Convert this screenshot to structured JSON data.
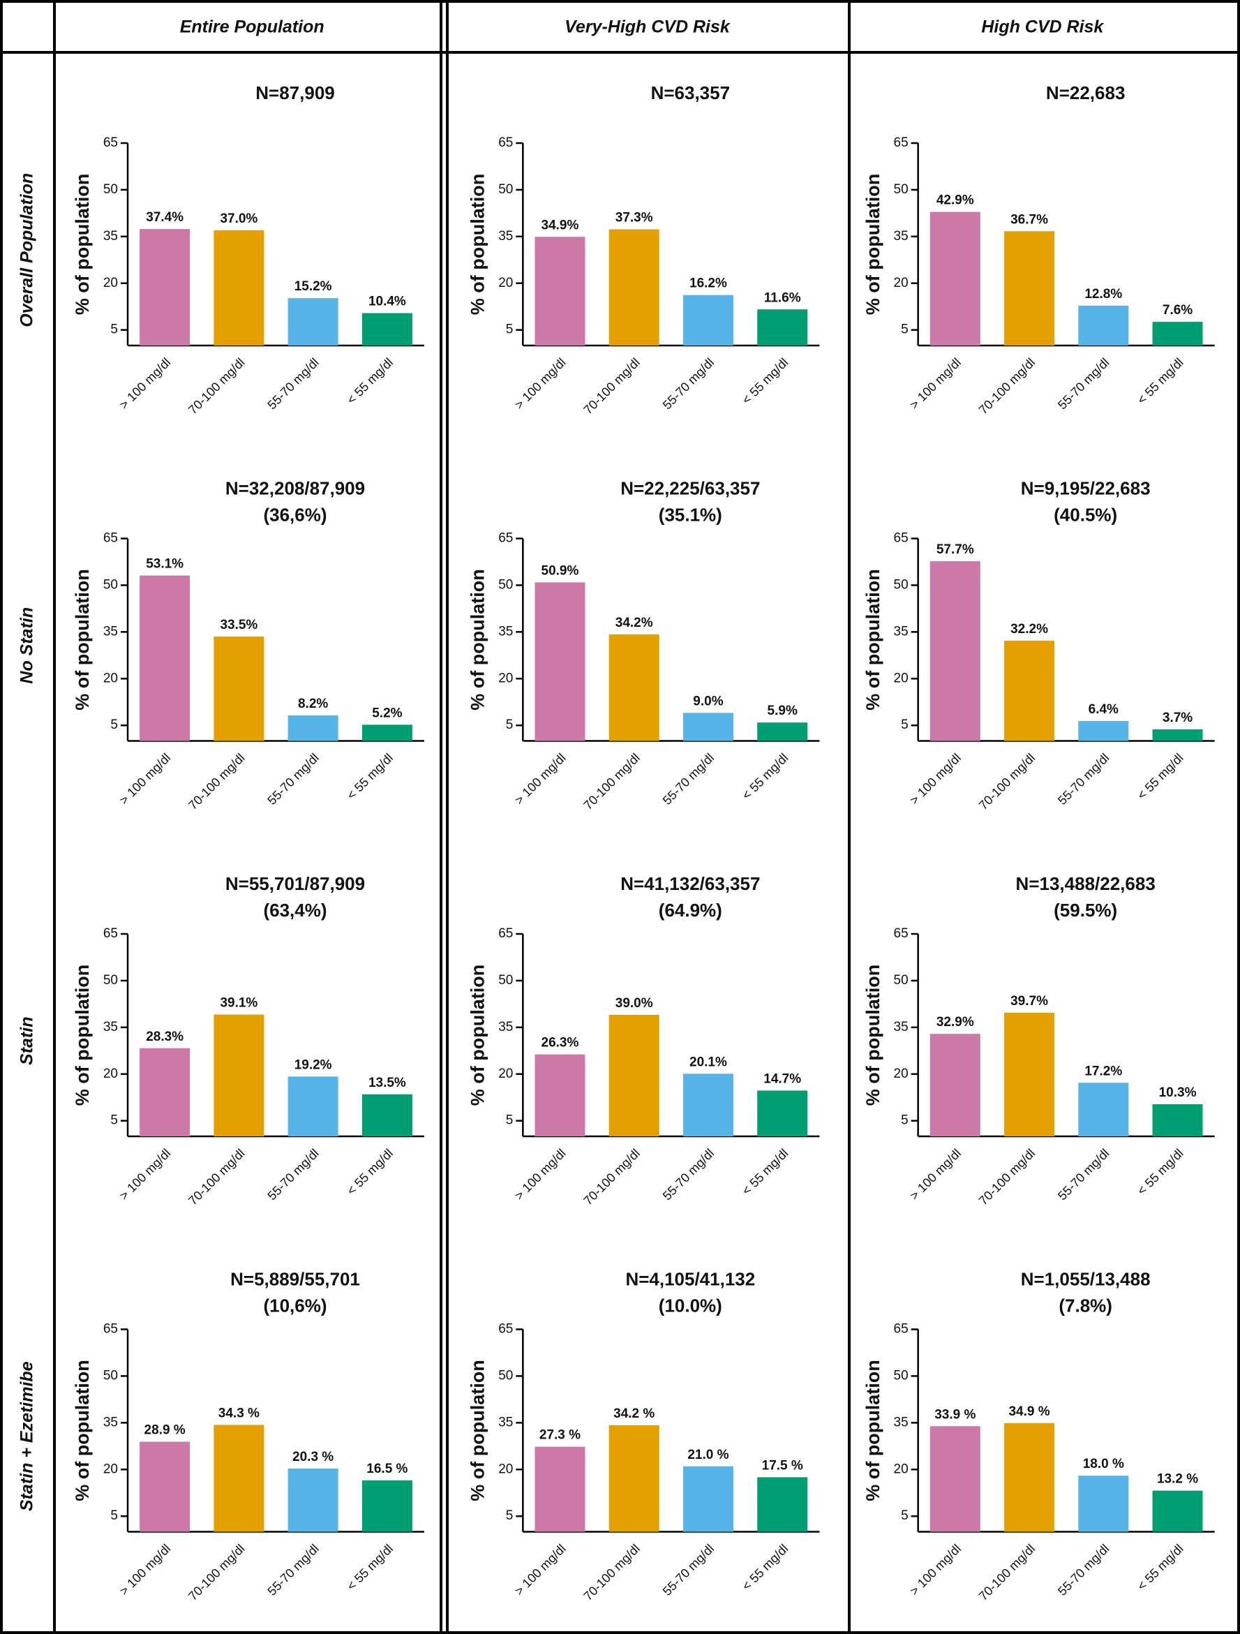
{
  "columns": [
    "Entire Population",
    "Very-High CVD Risk",
    "High CVD Risk"
  ],
  "rows": [
    "Overall Population",
    "No Statin",
    "Statin",
    "Statin + Ezetimibe"
  ],
  "chart_data": [
    {
      "type": "bar",
      "title": "N=87,909",
      "ylabel": "% of population",
      "categories": [
        "> 100 mg/dl",
        "70-100 mg/dl",
        "55-70 mg/dl",
        "< 55 mg/dl"
      ],
      "values": [
        37.4,
        37.0,
        15.2,
        10.4
      ],
      "value_labels": [
        "37.4%",
        "37.0%",
        "15.2%",
        "10.4%"
      ],
      "colors": [
        "#cc79a7",
        "#e69f00",
        "#56b4e9",
        "#009e73"
      ],
      "ylim": [
        0,
        65
      ],
      "yticks": [
        5,
        20,
        35,
        50,
        65
      ]
    },
    {
      "type": "bar",
      "title": "N=63,357",
      "ylabel": "% of population",
      "categories": [
        "> 100 mg/dl",
        "70-100 mg/dl",
        "55-70 mg/dl",
        "< 55 mg/dl"
      ],
      "values": [
        34.9,
        37.3,
        16.2,
        11.6
      ],
      "value_labels": [
        "34.9%",
        "37.3%",
        "16.2%",
        "11.6%"
      ],
      "colors": [
        "#cc79a7",
        "#e69f00",
        "#56b4e9",
        "#009e73"
      ],
      "ylim": [
        0,
        65
      ],
      "yticks": [
        5,
        20,
        35,
        50,
        65
      ]
    },
    {
      "type": "bar",
      "title": "N=22,683",
      "ylabel": "% of population",
      "categories": [
        "> 100 mg/dl",
        "70-100 mg/dl",
        "55-70 mg/dl",
        "< 55 mg/dl"
      ],
      "values": [
        42.9,
        36.7,
        12.8,
        7.6
      ],
      "value_labels": [
        "42.9%",
        "36.7%",
        "12.8%",
        "7.6%"
      ],
      "colors": [
        "#cc79a7",
        "#e69f00",
        "#56b4e9",
        "#009e73"
      ],
      "ylim": [
        0,
        65
      ],
      "yticks": [
        5,
        20,
        35,
        50,
        65
      ]
    },
    {
      "type": "bar",
      "title": "N=32,208/87,909",
      "subtitle": "(36,6%)",
      "ylabel": "% of population",
      "categories": [
        "> 100 mg/dl",
        "70-100 mg/dl",
        "55-70 mg/dl",
        "< 55 mg/dl"
      ],
      "values": [
        53.1,
        33.5,
        8.2,
        5.2
      ],
      "value_labels": [
        "53.1%",
        "33.5%",
        "8.2%",
        "5.2%"
      ],
      "colors": [
        "#cc79a7",
        "#e69f00",
        "#56b4e9",
        "#009e73"
      ],
      "ylim": [
        0,
        65
      ],
      "yticks": [
        5,
        20,
        35,
        50,
        65
      ]
    },
    {
      "type": "bar",
      "title": "N=22,225/63,357",
      "subtitle": "(35.1%)",
      "ylabel": "% of population",
      "categories": [
        "> 100 mg/dl",
        "70-100 mg/dl",
        "55-70 mg/dl",
        "< 55 mg/dl"
      ],
      "values": [
        50.9,
        34.2,
        9.0,
        5.9
      ],
      "value_labels": [
        "50.9%",
        "34.2%",
        "9.0%",
        "5.9%"
      ],
      "colors": [
        "#cc79a7",
        "#e69f00",
        "#56b4e9",
        "#009e73"
      ],
      "ylim": [
        0,
        65
      ],
      "yticks": [
        5,
        20,
        35,
        50,
        65
      ]
    },
    {
      "type": "bar",
      "title": "N=9,195/22,683",
      "subtitle": "(40.5%)",
      "ylabel": "% of population",
      "categories": [
        "> 100 mg/dl",
        "70-100 mg/dl",
        "55-70 mg/dl",
        "< 55 mg/dl"
      ],
      "values": [
        57.7,
        32.2,
        6.4,
        3.7
      ],
      "value_labels": [
        "57.7%",
        "32.2%",
        "6.4%",
        "3.7%"
      ],
      "colors": [
        "#cc79a7",
        "#e69f00",
        "#56b4e9",
        "#009e73"
      ],
      "ylim": [
        0,
        65
      ],
      "yticks": [
        5,
        20,
        35,
        50,
        65
      ]
    },
    {
      "type": "bar",
      "title": "N=55,701/87,909",
      "subtitle": "(63,4%)",
      "ylabel": "% of population",
      "categories": [
        "> 100 mg/dl",
        "70-100 mg/dl",
        "55-70 mg/dl",
        "< 55 mg/dl"
      ],
      "values": [
        28.3,
        39.1,
        19.2,
        13.5
      ],
      "value_labels": [
        "28.3%",
        "39.1%",
        "19.2%",
        "13.5%"
      ],
      "colors": [
        "#cc79a7",
        "#e69f00",
        "#56b4e9",
        "#009e73"
      ],
      "ylim": [
        0,
        65
      ],
      "yticks": [
        5,
        20,
        35,
        50,
        65
      ]
    },
    {
      "type": "bar",
      "title": "N=41,132/63,357",
      "subtitle": "(64.9%)",
      "ylabel": "% of population",
      "categories": [
        "> 100 mg/dl",
        "70-100 mg/dl",
        "55-70 mg/dl",
        "< 55 mg/dl"
      ],
      "values": [
        26.3,
        39.0,
        20.1,
        14.7
      ],
      "value_labels": [
        "26.3%",
        "39.0%",
        "20.1%",
        "14.7%"
      ],
      "colors": [
        "#cc79a7",
        "#e69f00",
        "#56b4e9",
        "#009e73"
      ],
      "ylim": [
        0,
        65
      ],
      "yticks": [
        5,
        20,
        35,
        50,
        65
      ]
    },
    {
      "type": "bar",
      "title": "N=13,488/22,683",
      "subtitle": "(59.5%)",
      "ylabel": "% of population",
      "categories": [
        "> 100 mg/dl",
        "70-100 mg/dl",
        "55-70 mg/dl",
        "< 55 mg/dl"
      ],
      "values": [
        32.9,
        39.7,
        17.2,
        10.3
      ],
      "value_labels": [
        "32.9%",
        "39.7%",
        "17.2%",
        "10.3%"
      ],
      "colors": [
        "#cc79a7",
        "#e69f00",
        "#56b4e9",
        "#009e73"
      ],
      "ylim": [
        0,
        65
      ],
      "yticks": [
        5,
        20,
        35,
        50,
        65
      ]
    },
    {
      "type": "bar",
      "title": "N=5,889/55,701",
      "subtitle": "(10,6%)",
      "ylabel": "% of population",
      "categories": [
        "> 100 mg/dl",
        "70-100 mg/dl",
        "55-70 mg/dl",
        "< 55 mg/dl"
      ],
      "values": [
        28.9,
        34.3,
        20.3,
        16.5
      ],
      "value_labels": [
        "28.9 %",
        "34.3 %",
        "20.3 %",
        "16.5 %"
      ],
      "colors": [
        "#cc79a7",
        "#e69f00",
        "#56b4e9",
        "#009e73"
      ],
      "ylim": [
        0,
        65
      ],
      "yticks": [
        5,
        20,
        35,
        50,
        65
      ]
    },
    {
      "type": "bar",
      "title": "N=4,105/41,132",
      "subtitle": "(10.0%)",
      "ylabel": "% of population",
      "categories": [
        "> 100 mg/dl",
        "70-100 mg/dl",
        "55-70 mg/dl",
        "< 55 mg/dl"
      ],
      "values": [
        27.3,
        34.2,
        21.0,
        17.5
      ],
      "value_labels": [
        "27.3 %",
        "34.2 %",
        "21.0 %",
        "17.5 %"
      ],
      "colors": [
        "#cc79a7",
        "#e69f00",
        "#56b4e9",
        "#009e73"
      ],
      "ylim": [
        0,
        65
      ],
      "yticks": [
        5,
        20,
        35,
        50,
        65
      ]
    },
    {
      "type": "bar",
      "title": "N=1,055/13,488",
      "subtitle": "(7.8%)",
      "ylabel": "% of population",
      "categories": [
        "> 100 mg/dl",
        "70-100 mg/dl",
        "55-70 mg/dl",
        "< 55 mg/dl"
      ],
      "values": [
        33.9,
        34.9,
        18.0,
        13.2
      ],
      "value_labels": [
        "33.9 %",
        "34.9 %",
        "18.0 %",
        "13.2 %"
      ],
      "colors": [
        "#cc79a7",
        "#e69f00",
        "#56b4e9",
        "#009e73"
      ],
      "ylim": [
        0,
        65
      ],
      "yticks": [
        5,
        20,
        35,
        50,
        65
      ]
    }
  ]
}
